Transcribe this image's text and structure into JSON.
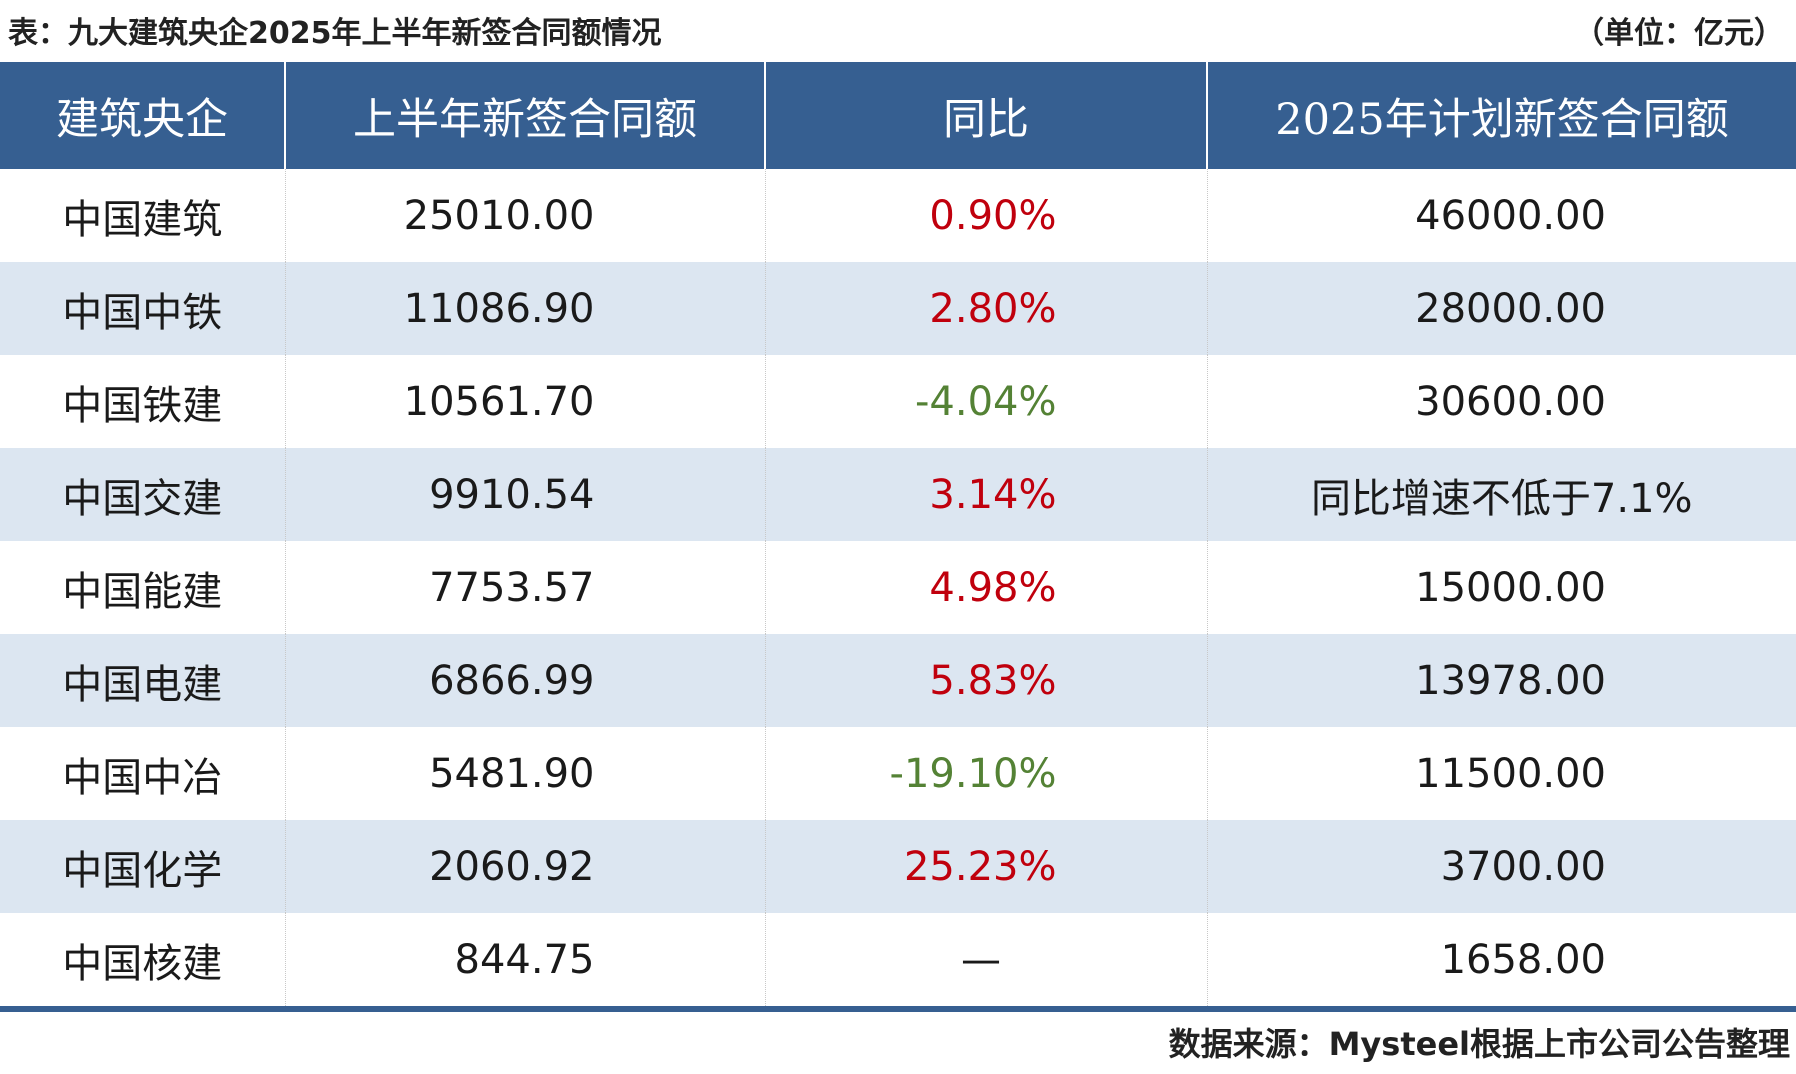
{
  "title": "表：九大建筑央企2025年上半年新签合同额情况",
  "unit": "（单位：亿元）",
  "source": "数据来源：Mysteel根据上市公司公告整理",
  "colors": {
    "header_bg": "#365f91",
    "band_bg": "#dce6f1",
    "positive": "#c0000d",
    "negative": "#548235"
  },
  "chart_data": {
    "type": "table",
    "columns": [
      "建筑央企",
      "上半年新签合同额",
      "同比",
      "2025年计划新签合同额"
    ],
    "rows": [
      {
        "company": "中国建筑",
        "amount": "25010.00",
        "yoy": "0.90%",
        "yoy_sign": "positive",
        "plan": "46000.00"
      },
      {
        "company": "中国中铁",
        "amount": "11086.90",
        "yoy": "2.80%",
        "yoy_sign": "positive",
        "plan": "28000.00"
      },
      {
        "company": "中国铁建",
        "amount": "10561.70",
        "yoy": "-4.04%",
        "yoy_sign": "negative",
        "plan": "30600.00"
      },
      {
        "company": "中国交建",
        "amount": "9910.54",
        "yoy": "3.14%",
        "yoy_sign": "positive",
        "plan": "同比增速不低于7.1%"
      },
      {
        "company": "中国能建",
        "amount": "7753.57",
        "yoy": "4.98%",
        "yoy_sign": "positive",
        "plan": "15000.00"
      },
      {
        "company": "中国电建",
        "amount": "6866.99",
        "yoy": "5.83%",
        "yoy_sign": "positive",
        "plan": "13978.00"
      },
      {
        "company": "中国中冶",
        "amount": "5481.90",
        "yoy": "-19.10%",
        "yoy_sign": "negative",
        "plan": "11500.00"
      },
      {
        "company": "中国化学",
        "amount": "2060.92",
        "yoy": "25.23%",
        "yoy_sign": "positive",
        "plan": "3700.00"
      },
      {
        "company": "中国核建",
        "amount": "844.75",
        "yoy": "—",
        "yoy_sign": "none",
        "plan": "1658.00"
      }
    ]
  }
}
